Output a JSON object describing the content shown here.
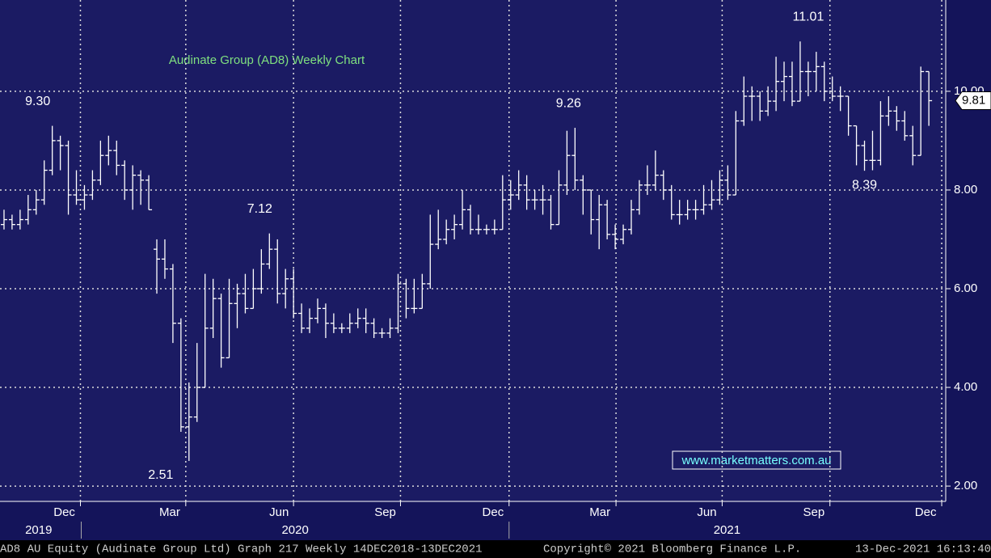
{
  "chart_data": {
    "type": "ohlc",
    "title": "Audinate Group (AD8) Weekly Chart",
    "watermark": "www.marketmatters.com.au",
    "footer": [
      "AD8 AU Equity (Audinate Group Ltd) Graph 217  Weekly 14DEC2018-13DEC2021",
      "Copyright© 2021 Bloomberg Finance L.P.",
      "13-Dec-2021 16:13:40"
    ],
    "color": "#ffffff",
    "annotations": [
      "9.30",
      "7.12",
      "2.51",
      "9.26",
      "11.01",
      "8.39"
    ],
    "ylim": [
      1.69,
      11.85
    ],
    "yticks": [
      {
        "value": 2,
        "label": "2.00"
      },
      {
        "value": 4,
        "label": "4.00"
      },
      {
        "value": 6,
        "label": "6.00"
      },
      {
        "value": 8,
        "label": "8.00"
      },
      {
        "value": 10,
        "label": "10.00"
      }
    ],
    "xlim": [
      -0.5,
      117.1
    ],
    "xticks": [
      {
        "value": 7.5,
        "label": "Dec"
      },
      {
        "value": 20.6,
        "label": "Mar"
      },
      {
        "value": 34.2,
        "label": "Jun"
      },
      {
        "value": 47.4,
        "label": "Sep"
      },
      {
        "value": 60.8,
        "label": "Dec"
      },
      {
        "value": 74.1,
        "label": "Mar"
      },
      {
        "value": 87.4,
        "label": "Jun"
      },
      {
        "value": 100.7,
        "label": "Sep"
      },
      {
        "value": 114.6,
        "label": "Dec"
      }
    ],
    "xgrid": [
      9.5,
      22.6,
      36.0,
      49.3,
      62.8,
      76.1,
      89.3,
      102.7,
      116.6
    ],
    "years": [
      {
        "value": 4.3,
        "label": "2019"
      },
      {
        "value": 36.2,
        "label": "2020"
      },
      {
        "value": 89.9,
        "label": "2021"
      }
    ],
    "year_dividers": [
      9.6,
      62.8
    ],
    "grid": true,
    "bars": [
      [
        7.3,
        7.6,
        7.2,
        7.4
      ],
      [
        7.4,
        7.5,
        7.2,
        7.3
      ],
      [
        7.3,
        7.6,
        7.2,
        7.4
      ],
      [
        7.4,
        7.9,
        7.3,
        7.6
      ],
      [
        7.6,
        8.0,
        7.5,
        7.8
      ],
      [
        7.8,
        8.6,
        7.7,
        8.4
      ],
      [
        8.4,
        9.3,
        8.3,
        9.0
      ],
      [
        9.0,
        9.1,
        8.4,
        8.9
      ],
      [
        8.9,
        9.0,
        7.5,
        7.9
      ],
      [
        7.9,
        8.4,
        7.7,
        7.8
      ],
      [
        7.8,
        8.1,
        7.6,
        7.9
      ],
      [
        7.9,
        8.4,
        7.8,
        8.2
      ],
      [
        8.2,
        9.0,
        8.1,
        8.7
      ],
      [
        8.7,
        9.1,
        8.5,
        8.8
      ],
      [
        8.8,
        9.0,
        8.3,
        8.5
      ],
      [
        8.5,
        8.6,
        7.8,
        8.0
      ],
      [
        8.0,
        8.5,
        7.6,
        8.3
      ],
      [
        8.3,
        8.4,
        7.7,
        8.2
      ],
      [
        8.2,
        8.3,
        7.6,
        7.6
      ],
      [
        6.8,
        7.0,
        5.9,
        6.6
      ],
      [
        6.6,
        7.0,
        6.2,
        6.4
      ],
      [
        6.4,
        6.5,
        4.9,
        5.3
      ],
      [
        5.3,
        5.4,
        3.1,
        3.2
      ],
      [
        3.2,
        4.1,
        2.51,
        3.4
      ],
      [
        3.4,
        4.9,
        3.3,
        4.0
      ],
      [
        4.0,
        6.3,
        4.0,
        5.2
      ],
      [
        5.2,
        6.2,
        5.0,
        5.8
      ],
      [
        5.8,
        5.9,
        4.4,
        4.6
      ],
      [
        4.6,
        6.2,
        4.6,
        5.7
      ],
      [
        5.7,
        6.1,
        5.2,
        5.9
      ],
      [
        5.9,
        6.3,
        5.5,
        5.6
      ],
      [
        5.6,
        6.4,
        5.6,
        6.0
      ],
      [
        6.0,
        6.8,
        5.9,
        6.5
      ],
      [
        6.5,
        7.12,
        6.4,
        6.8
      ],
      [
        6.8,
        7.0,
        5.7,
        5.9
      ],
      [
        5.9,
        6.4,
        5.6,
        6.2
      ],
      [
        6.2,
        6.4,
        5.4,
        5.5
      ],
      [
        5.5,
        5.7,
        5.1,
        5.2
      ],
      [
        5.2,
        5.6,
        5.1,
        5.4
      ],
      [
        5.4,
        5.8,
        5.3,
        5.6
      ],
      [
        5.6,
        5.7,
        5.0,
        5.3
      ],
      [
        5.3,
        5.5,
        5.1,
        5.2
      ],
      [
        5.2,
        5.3,
        5.1,
        5.2
      ],
      [
        5.2,
        5.5,
        5.1,
        5.3
      ],
      [
        5.3,
        5.6,
        5.2,
        5.4
      ],
      [
        5.4,
        5.6,
        5.1,
        5.3
      ],
      [
        5.3,
        5.4,
        5.0,
        5.1
      ],
      [
        5.1,
        5.2,
        5.0,
        5.1
      ],
      [
        5.1,
        5.4,
        5.0,
        5.2
      ],
      [
        5.2,
        6.3,
        5.1,
        6.1
      ],
      [
        6.1,
        6.2,
        5.4,
        5.6
      ],
      [
        5.6,
        6.2,
        5.5,
        5.6
      ],
      [
        5.6,
        6.3,
        5.6,
        6.1
      ],
      [
        6.1,
        7.5,
        6.0,
        6.9
      ],
      [
        6.9,
        7.6,
        6.8,
        7.0
      ],
      [
        7.0,
        7.4,
        6.9,
        7.2
      ],
      [
        7.2,
        7.5,
        7.0,
        7.3
      ],
      [
        7.3,
        8.0,
        7.2,
        7.6
      ],
      [
        7.6,
        7.7,
        7.1,
        7.2
      ],
      [
        7.2,
        7.5,
        7.1,
        7.2
      ],
      [
        7.2,
        7.3,
        7.1,
        7.2
      ],
      [
        7.2,
        7.4,
        7.1,
        7.2
      ],
      [
        7.2,
        8.3,
        7.2,
        7.8
      ],
      [
        7.8,
        8.2,
        7.6,
        7.9
      ],
      [
        7.9,
        8.4,
        7.8,
        8.1
      ],
      [
        8.1,
        8.3,
        7.6,
        7.8
      ],
      [
        7.8,
        8.0,
        7.6,
        7.8
      ],
      [
        7.8,
        8.1,
        7.5,
        7.8
      ],
      [
        7.8,
        7.9,
        7.2,
        7.3
      ],
      [
        7.3,
        8.4,
        7.3,
        8.1
      ],
      [
        8.1,
        9.2,
        7.9,
        8.7
      ],
      [
        8.7,
        9.26,
        8.0,
        8.2
      ],
      [
        8.2,
        8.3,
        7.5,
        8.0
      ],
      [
        8.0,
        8.0,
        7.1,
        7.4
      ],
      [
        7.4,
        7.9,
        6.8,
        7.7
      ],
      [
        7.7,
        7.8,
        7.0,
        7.1
      ],
      [
        7.1,
        7.3,
        6.8,
        7.0
      ],
      [
        7.0,
        7.3,
        6.9,
        7.2
      ],
      [
        7.2,
        7.8,
        7.1,
        7.6
      ],
      [
        7.6,
        8.2,
        7.5,
        8.1
      ],
      [
        8.1,
        8.5,
        7.9,
        8.1
      ],
      [
        8.1,
        8.8,
        8.0,
        8.3
      ],
      [
        8.3,
        8.4,
        7.8,
        8.0
      ],
      [
        8.0,
        8.1,
        7.4,
        7.5
      ],
      [
        7.5,
        7.8,
        7.3,
        7.5
      ],
      [
        7.5,
        7.8,
        7.4,
        7.6
      ],
      [
        7.6,
        7.8,
        7.4,
        7.6
      ],
      [
        7.6,
        8.1,
        7.5,
        7.7
      ],
      [
        7.7,
        8.2,
        7.6,
        7.8
      ],
      [
        7.8,
        8.4,
        7.7,
        8.2
      ],
      [
        8.2,
        8.5,
        7.8,
        7.9
      ],
      [
        7.9,
        9.6,
        7.9,
        9.4
      ],
      [
        9.4,
        10.3,
        9.3,
        9.9
      ],
      [
        9.9,
        10.1,
        9.4,
        9.9
      ],
      [
        9.9,
        10.0,
        9.4,
        9.6
      ],
      [
        9.6,
        10.1,
        9.5,
        9.8
      ],
      [
        9.8,
        10.7,
        9.6,
        10.2
      ],
      [
        10.2,
        10.6,
        9.8,
        10.3
      ],
      [
        10.3,
        10.6,
        9.7,
        9.8
      ],
      [
        9.8,
        11.01,
        9.8,
        10.4
      ],
      [
        10.4,
        10.6,
        9.9,
        10.4
      ],
      [
        10.4,
        10.8,
        10.0,
        10.5
      ],
      [
        10.5,
        10.6,
        9.8,
        10.0
      ],
      [
        10.0,
        10.3,
        9.8,
        9.9
      ],
      [
        9.9,
        10.1,
        9.6,
        9.9
      ],
      [
        9.9,
        9.9,
        9.1,
        9.3
      ],
      [
        9.3,
        9.3,
        8.5,
        8.9
      ],
      [
        8.9,
        9.0,
        8.39,
        8.6
      ],
      [
        8.6,
        9.2,
        8.4,
        8.6
      ],
      [
        8.6,
        9.8,
        8.5,
        9.5
      ],
      [
        9.5,
        9.9,
        9.3,
        9.6
      ],
      [
        9.6,
        9.7,
        9.2,
        9.4
      ],
      [
        9.4,
        9.6,
        9.0,
        9.1
      ],
      [
        9.1,
        9.3,
        8.5,
        8.7
      ],
      [
        8.7,
        10.5,
        8.7,
        10.4
      ],
      [
        10.4,
        10.4,
        9.3,
        9.81
      ]
    ]
  }
}
